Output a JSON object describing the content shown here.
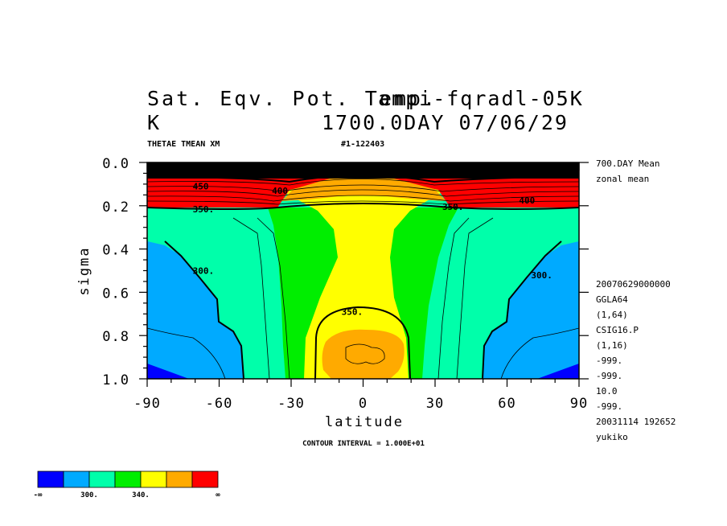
{
  "header": {
    "title_line1": "Sat. Eqv. Pot. Temp.",
    "title_overlap": "ampi-fqradl-05K",
    "units": "K",
    "time_label": "1700.0DAY 07/06/29",
    "variable": "THETAE TMEAN XM",
    "run_id": "#1-122403"
  },
  "right_info": {
    "mean_label": "700.DAY Mean",
    "zonal_label": "zonal mean",
    "meta": [
      "20070629000000",
      "GGLA64",
      "(1,64)",
      "CSIG16.P",
      "(1,16)",
      "-999.",
      "-999.",
      "10.0",
      "-999.",
      "20031114 192652",
      "yukiko"
    ]
  },
  "footer": {
    "contour_interval": "CONTOUR INTERVAL = 1.000E+01"
  },
  "chart_data": {
    "type": "contour",
    "xlabel": "latitude",
    "ylabel": "sigma",
    "xlim": [
      -90,
      90
    ],
    "ylim": [
      0.0,
      1.0
    ],
    "y_inverted": true,
    "x_ticks": [
      -90,
      -60,
      -30,
      0,
      30,
      60,
      90
    ],
    "x_tick_labels": [
      "-90",
      "-60",
      "-30",
      "0",
      "30",
      "60",
      "90"
    ],
    "y_ticks": [
      0.0,
      0.2,
      0.4,
      0.6,
      0.8,
      1.0
    ],
    "y_tick_labels": [
      "0.0",
      "0.2",
      "0.4",
      "0.6",
      "0.8",
      "1.0"
    ],
    "contour_labels": [
      {
        "text": "450",
        "x": -71,
        "y": 0.11
      },
      {
        "text": "400",
        "x": -38,
        "y": 0.13
      },
      {
        "text": "350.",
        "x": -71,
        "y": 0.215
      },
      {
        "text": "350.",
        "x": 33,
        "y": 0.205
      },
      {
        "text": "400",
        "x": 65,
        "y": 0.175
      },
      {
        "text": "300.",
        "x": -71,
        "y": 0.5
      },
      {
        "text": "300.",
        "x": 70,
        "y": 0.52
      },
      {
        "text": "350.",
        "x": -9,
        "y": 0.69
      }
    ],
    "colorbar": {
      "colors": [
        "#0000ff",
        "#00aaff",
        "#00ffaa",
        "#00ee00",
        "#ffff00",
        "#ffaa00",
        "#ff0000"
      ],
      "labels": [
        "-∞",
        "300.",
        "340.",
        "∞"
      ]
    }
  }
}
